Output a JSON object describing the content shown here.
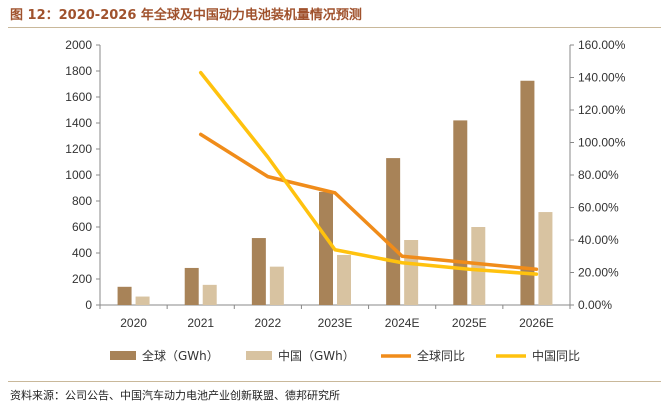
{
  "title": "图 12：2020-2026 年全球及中国动力电池装机量情况预测",
  "source": "资料来源：公司公告、中国汽车动力电池产业创新联盟、德邦研究所",
  "chart_data": {
    "type": "bar",
    "categories": [
      "2020",
      "2021",
      "2022",
      "2023E",
      "2024E",
      "2025E",
      "2026E"
    ],
    "series": [
      {
        "name": "全球（GWh）",
        "kind": "bar",
        "axis": "left",
        "color": "#a88358",
        "values": [
          140,
          285,
          515,
          870,
          1130,
          1420,
          1725
        ]
      },
      {
        "name": "中国（GWh）",
        "kind": "bar",
        "axis": "left",
        "color": "#d8c3a1",
        "values": [
          65,
          155,
          295,
          385,
          500,
          600,
          715
        ]
      },
      {
        "name": "全球同比",
        "kind": "line",
        "axis": "right",
        "color": "#f08c1a",
        "values": [
          null,
          1.05,
          0.79,
          0.69,
          0.3,
          0.26,
          0.22
        ]
      },
      {
        "name": "中国同比",
        "kind": "line",
        "axis": "right",
        "color": "#ffc20e",
        "values": [
          null,
          1.43,
          0.91,
          0.34,
          0.26,
          0.22,
          0.19
        ]
      }
    ],
    "left_axis": {
      "min": 0,
      "max": 2000,
      "step": 200,
      "tick_labels": [
        "0",
        "200",
        "400",
        "600",
        "800",
        "1000",
        "1200",
        "1400",
        "1600",
        "1800",
        "2000"
      ]
    },
    "right_axis": {
      "min": 0,
      "max": 1.6,
      "step": 0.2,
      "tick_labels": [
        "0.00%",
        "20.00%",
        "40.00%",
        "60.00%",
        "80.00%",
        "100.00%",
        "120.00%",
        "140.00%",
        "160.00%"
      ]
    },
    "grid": false,
    "legend_position": "bottom"
  }
}
